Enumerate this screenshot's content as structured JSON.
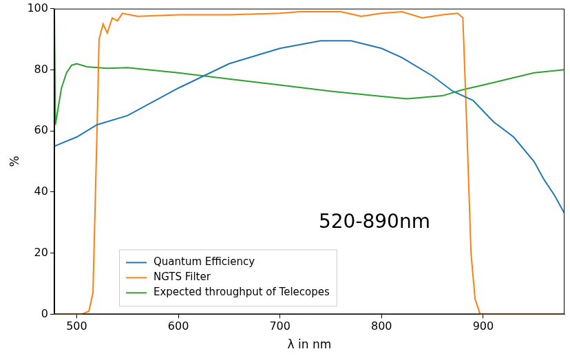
{
  "chart_data": {
    "type": "line",
    "x_label": "λ in nm",
    "y_label": "%",
    "xlim": [
      478,
      980
    ],
    "xticks": [
      500,
      600,
      700,
      800,
      900
    ],
    "ylim": [
      0,
      100
    ],
    "yticks": [
      0,
      20,
      40,
      60,
      80,
      100
    ],
    "grid": false,
    "legend": "lower center",
    "annotations": [
      {
        "text": "520-890nm",
        "x": 793,
        "y": 30
      }
    ],
    "series": [
      {
        "name": "Quantum Efficiency",
        "color": "#1f77b4",
        "x": [
          478,
          500,
          520,
          550,
          600,
          650,
          700,
          740,
          770,
          800,
          820,
          850,
          870,
          890,
          910,
          930,
          950,
          960,
          970,
          980
        ],
        "values": [
          55,
          58,
          62,
          65,
          74,
          82,
          87,
          89.5,
          89.5,
          87,
          84,
          78,
          73,
          70,
          63,
          58,
          50,
          44,
          39,
          33
        ]
      },
      {
        "name": "NGTS Filter",
        "color": "#ff7f0e",
        "x": [
          478,
          505,
          512,
          516,
          520,
          522,
          526,
          530,
          535,
          540,
          545,
          560,
          600,
          650,
          700,
          720,
          760,
          780,
          800,
          820,
          840,
          860,
          875,
          880,
          884,
          888,
          892,
          897,
          980
        ],
        "values": [
          0,
          0,
          1,
          7,
          60,
          90,
          95,
          92,
          97,
          96,
          98.5,
          97.5,
          98,
          98,
          98.5,
          99,
          99,
          97.5,
          98.5,
          99,
          97,
          98,
          98.5,
          97,
          60,
          20,
          5,
          0,
          0
        ]
      },
      {
        "name": "Expected throughput of Telecopes",
        "color": "#2ca02c",
        "x": [
          478,
          479,
          485,
          490,
          495,
          500,
          510,
          530,
          550,
          600,
          650,
          700,
          750,
          800,
          825,
          860,
          880,
          900,
          950,
          980
        ],
        "values": [
          100,
          62,
          74,
          79,
          81.5,
          82,
          81,
          80.5,
          80.7,
          79,
          77,
          75,
          73,
          71.3,
          70.5,
          71.5,
          73.5,
          75,
          79,
          80
        ]
      }
    ]
  }
}
